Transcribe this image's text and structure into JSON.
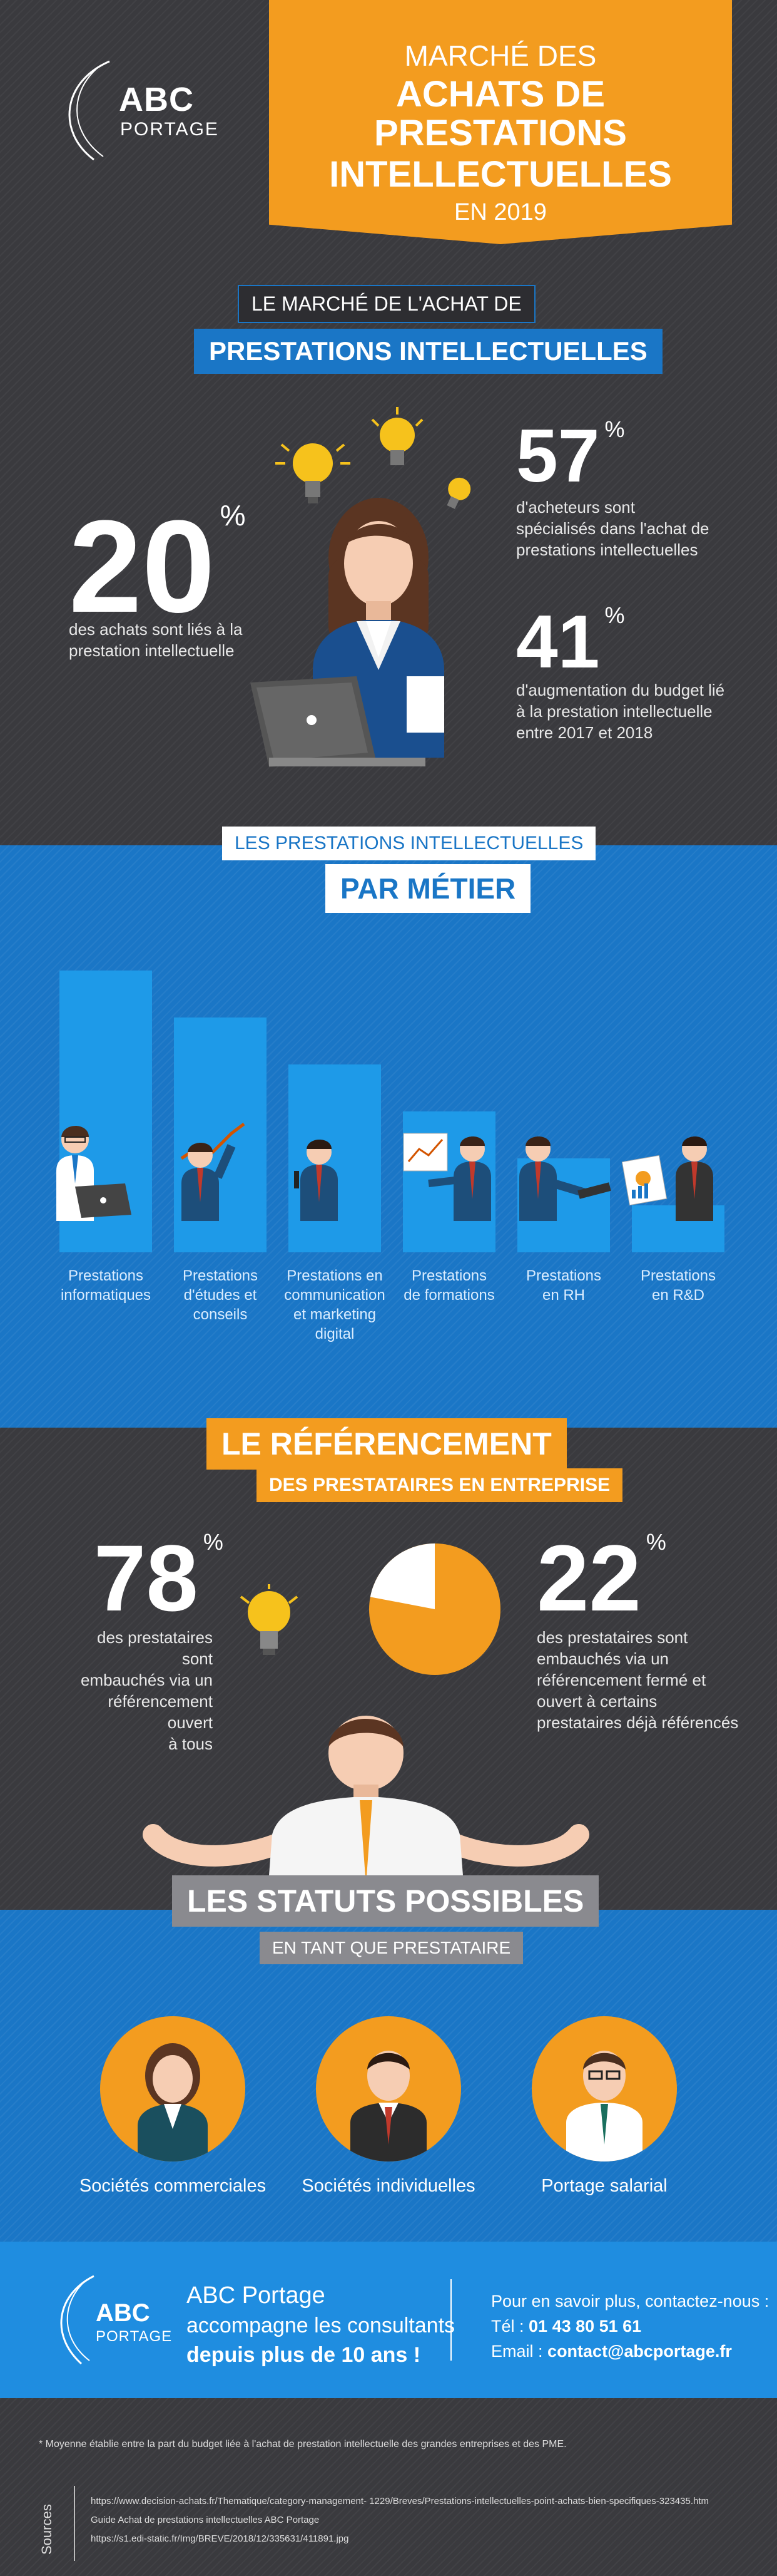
{
  "header": {
    "logo_abc": "ABC",
    "logo_portage": "PORTAGE",
    "title_line1": "MARCHÉ DES",
    "title_line2": "ACHATS DE PRESTATIONS",
    "title_line3": "INTELLECTUELLES",
    "title_line4": "EN 2019"
  },
  "market": {
    "tag_small": "LE MARCHÉ DE L'ACHAT DE",
    "tag_big": "PRESTATIONS INTELLECTUELLES",
    "stat1_value": "20",
    "stat1_pct": "%",
    "stat1_desc_l1": "des achats sont liés à la",
    "stat1_desc_l2": "prestation intellectuelle",
    "stat2_value": "57",
    "stat2_pct": "%",
    "stat2_desc_l1": "d'acheteurs sont",
    "stat2_desc_l2": "spécialisés dans l'achat de",
    "stat2_desc_l3": "prestations intellectuelles",
    "stat3_value": "41",
    "stat3_pct": "%",
    "stat3_desc_l1": "d'augmentation du budget lié",
    "stat3_desc_l2": "à la prestation intellectuelle",
    "stat3_desc_l3": "entre 2017 et 2018"
  },
  "metier": {
    "tag_small": "LES PRESTATIONS INTELLECTUELLES",
    "tag_big": "PAR MÉTIER",
    "bars": [
      {
        "l1": "Prestations",
        "l2": "informatiques",
        "l3": "",
        "l4": "",
        "value": 6
      },
      {
        "l1": "Prestations",
        "l2": "d'études et",
        "l3": "conseils",
        "l4": "",
        "value": 5
      },
      {
        "l1": "Prestations en",
        "l2": "communication",
        "l3": "et marketing",
        "l4": "digital",
        "value": 4
      },
      {
        "l1": "Prestations",
        "l2": "de formations",
        "l3": "",
        "l4": "",
        "value": 3
      },
      {
        "l1": "Prestations",
        "l2": "en RH",
        "l3": "",
        "l4": "",
        "value": 2
      },
      {
        "l1": "Prestations",
        "l2": "en R&D",
        "l3": "",
        "l4": "",
        "value": 1
      }
    ]
  },
  "referencement": {
    "tag_big": "LE RÉFÉRENCEMENT",
    "tag_small": "DES PRESTATAIRES EN ENTREPRISE",
    "stat1_value": "78",
    "stat1_pct": "%",
    "stat1_desc_l1": "des prestataires sont",
    "stat1_desc_l2": "embauchés via un",
    "stat1_desc_l3": "référencement ouvert",
    "stat1_desc_l4": "à tous",
    "stat2_value": "22",
    "stat2_pct": "%",
    "stat2_desc_l1": "des prestataires sont",
    "stat2_desc_l2": "embauchés via un",
    "stat2_desc_l3": "référencement fermé et",
    "stat2_desc_l4": "ouvert à certains",
    "stat2_desc_l5": "prestataires déjà référencés",
    "pie_fraction": 0.22
  },
  "statuts": {
    "tag_big": "LES STATUTS POSSIBLES",
    "tag_small": "EN TANT QUE PRESTATAIRE",
    "items": [
      {
        "label": "Sociétés commerciales"
      },
      {
        "label": "Sociétés individuelles"
      },
      {
        "label": "Portage salarial"
      }
    ]
  },
  "footer": {
    "logo_abc": "ABC",
    "logo_portage": "PORTAGE",
    "company": "ABC Portage",
    "tagline": "accompagne les consultants",
    "tagline_bold": "depuis plus de 10 ans !",
    "contact_intro": "Pour en savoir plus, contactez-nous :",
    "tel_label": "Tél :",
    "tel_value": "01 43 80 51 61",
    "email_label": "Email :",
    "email_value": "contact@abcportage.fr"
  },
  "notes": {
    "footnote": "* Moyenne établie entre la part du budget liée à l'achat de prestation intellectuelle des grandes entreprises et des PME.",
    "sources_label": "Sources",
    "source1": "https://www.decision-achats.fr/Thematique/category-management- 1229/Breves/Prestations-intellectuelles-point-achats-bien-specifiques-323435.htm",
    "source2": "Guide Achat de prestations intellectuelles ABC Portage",
    "source3": "https://s1.edi-static.fr/Img/BREVE/2018/12/335631/411891.jpg"
  },
  "colors": {
    "orange": "#f39c1f",
    "blue": "#1a76c6",
    "bar_blue": "#1e9ae8",
    "dark": "#3a3a3e"
  }
}
